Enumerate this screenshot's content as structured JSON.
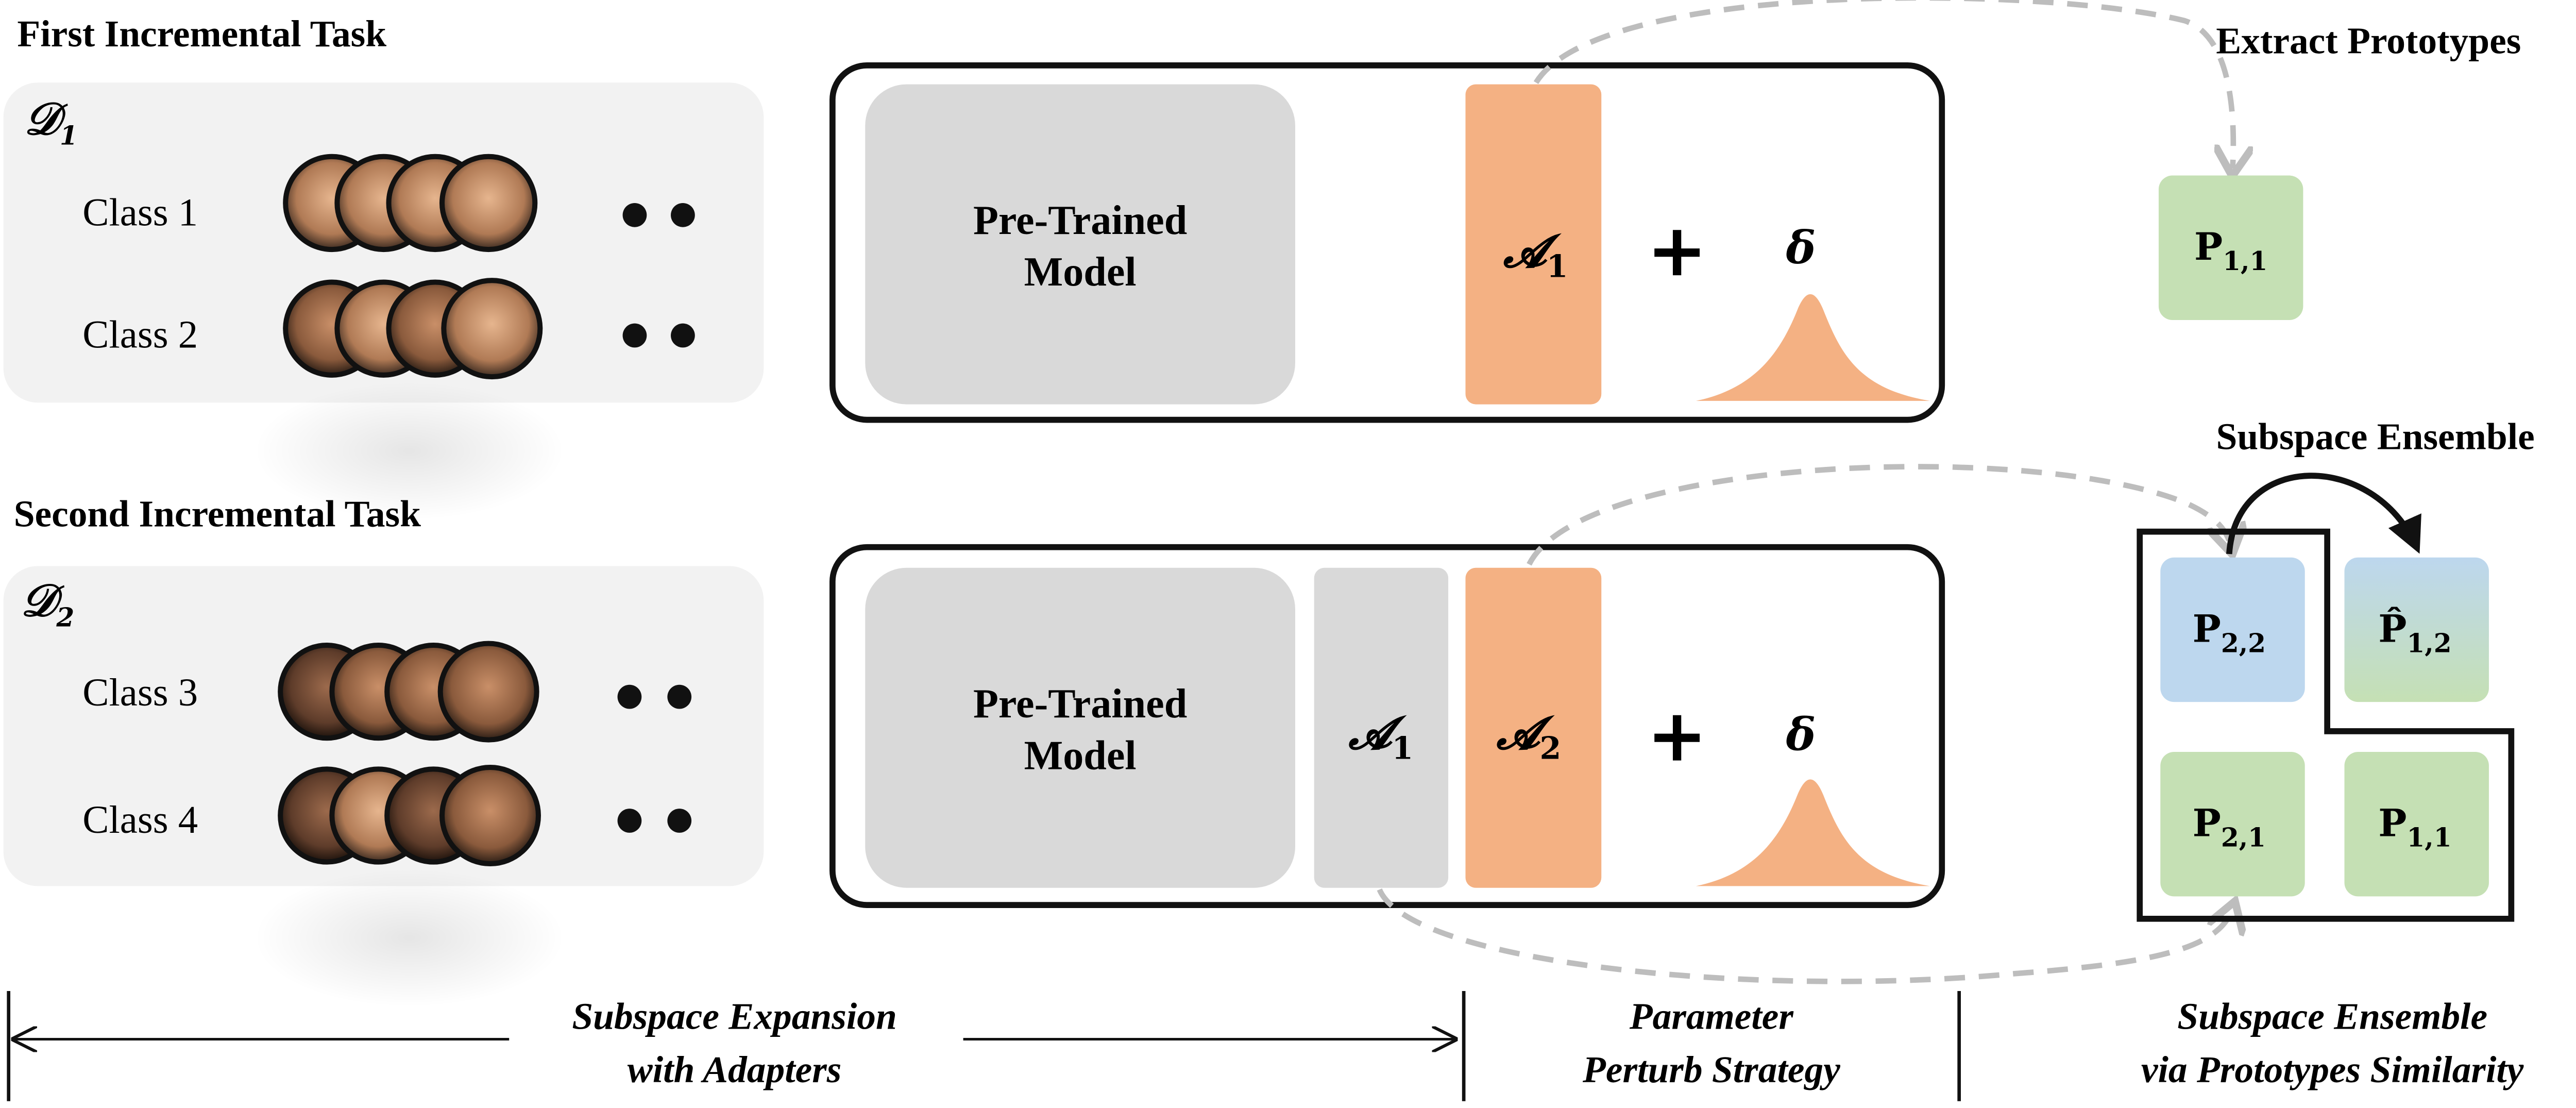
{
  "task1": {
    "title": "First Incremental Task",
    "dataset": "𝒟",
    "dataset_sub": "1",
    "classes": [
      "Class 1",
      "Class 2"
    ],
    "ellipsis": "• •"
  },
  "task2": {
    "title": "Second Incremental Task",
    "dataset": "𝒟",
    "dataset_sub": "2",
    "classes": [
      "Class 3",
      "Class 4"
    ],
    "ellipsis": "• •"
  },
  "model": {
    "line1": "Pre-Trained",
    "line2": "Model"
  },
  "adapters": {
    "a1": "𝓐",
    "a1_sub": "1",
    "a2": "𝓐",
    "a2_sub": "2"
  },
  "perturb": {
    "plus": "+",
    "delta": "δ"
  },
  "right": {
    "extract_title": "Extract Prototypes",
    "ensemble_title": "Subspace Ensemble"
  },
  "prototypes": {
    "p11": {
      "base": "P",
      "sub": "1,1"
    },
    "p22": {
      "base": "P",
      "sub": "2,2"
    },
    "p12hat": {
      "base": "P̂",
      "sub": "1,2"
    },
    "p21": {
      "base": "P",
      "sub": "2,1"
    },
    "p11b": {
      "base": "P",
      "sub": "1,1"
    }
  },
  "footer": {
    "sec1_line1": "Subspace Expansion",
    "sec1_line2": "with Adapters",
    "sec2_line1": "Parameter",
    "sec2_line2": "Perturb Strategy",
    "sec3_line1": "Subspace Ensemble",
    "sec3_line2": "via Prototypes Similarity"
  },
  "colors": {
    "adapter_orange": "#f4b183",
    "proto_green": "#c5e0b4",
    "proto_blue": "#bdd7ee",
    "panel_gray": "#f2f2f2",
    "model_gray": "#d9d9d9",
    "arrow_gray": "#bdbdbd"
  }
}
